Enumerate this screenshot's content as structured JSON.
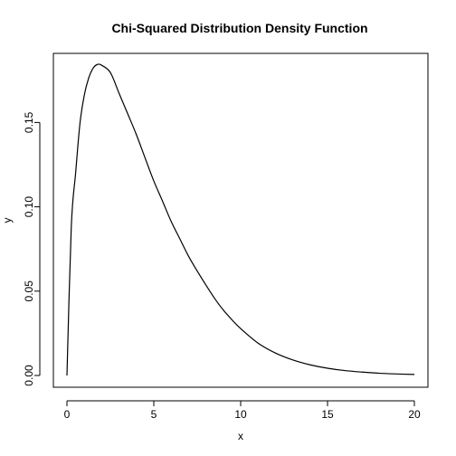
{
  "chart_data": {
    "type": "line",
    "title": "Chi-Squared Distribution Density Function",
    "xlabel": "x",
    "ylabel": "y",
    "xlim": [
      0,
      20
    ],
    "ylim": [
      0,
      0.184
    ],
    "xticks": [
      0,
      5,
      10,
      15,
      20
    ],
    "yticks": [
      0,
      0.05,
      0.1,
      0.15
    ],
    "xtick_labels": [
      "0",
      "5",
      "10",
      "15",
      "20"
    ],
    "ytick_labels": [
      "0.00",
      "0.05",
      "0.10",
      "0.15"
    ],
    "grid": false,
    "series": [
      {
        "x": [
          0,
          0.25,
          0.5,
          0.75,
          1,
          1.25,
          1.5,
          1.75,
          2,
          2.5,
          3,
          3.5,
          4,
          4.5,
          5,
          5.5,
          6,
          6.5,
          7,
          7.5,
          8,
          8.5,
          9,
          9.5,
          10,
          11,
          12,
          13,
          14,
          15,
          16,
          17,
          18,
          19,
          20
        ],
        "values": [
          0,
          0.0882,
          0.1201,
          0.1496,
          0.1663,
          0.1763,
          0.1821,
          0.1844,
          0.1839,
          0.1796,
          0.1673,
          0.1551,
          0.1427,
          0.1289,
          0.1153,
          0.1034,
          0.0913,
          0.081,
          0.0707,
          0.0619,
          0.0536,
          0.0457,
          0.0388,
          0.033,
          0.0278,
          0.0192,
          0.0133,
          0.0092,
          0.0063,
          0.0043,
          0.0029,
          0.002,
          0.0013,
          0.0009,
          0.0006
        ]
      }
    ]
  }
}
